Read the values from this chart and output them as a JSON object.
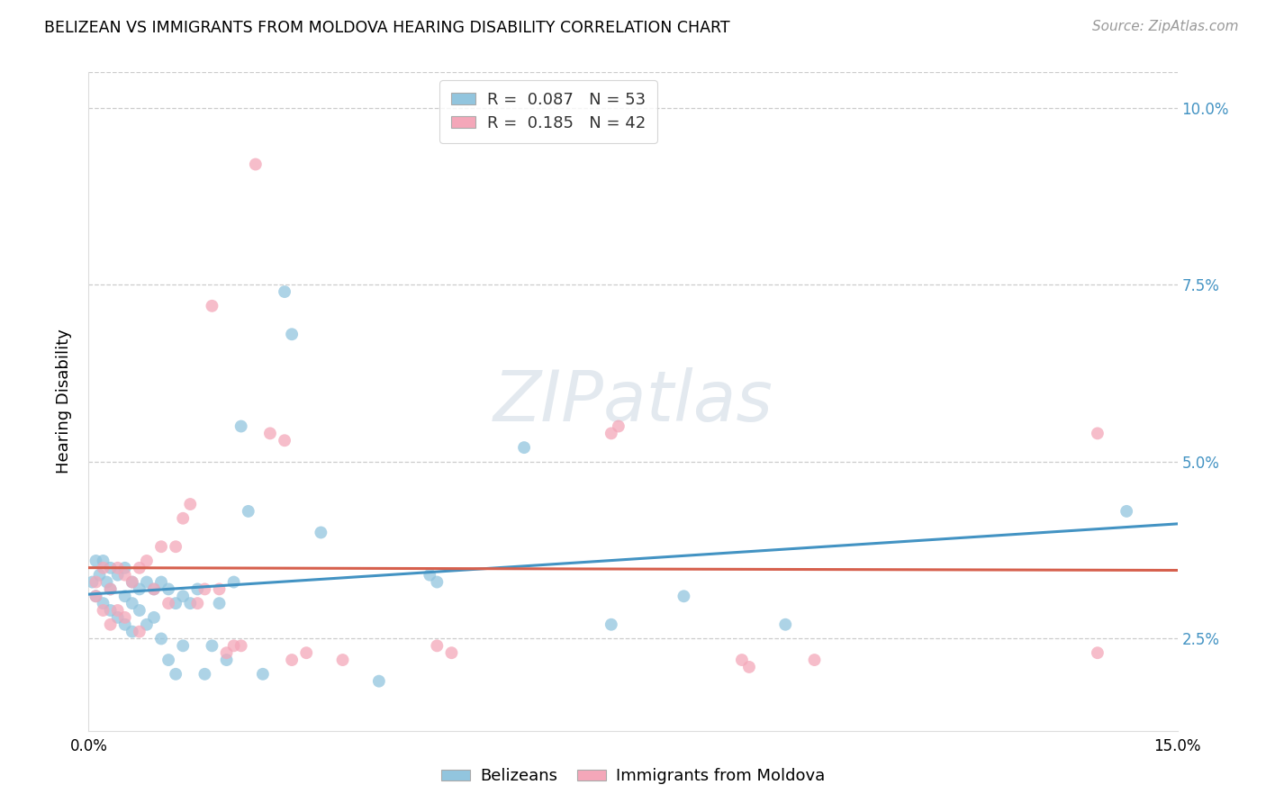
{
  "title": "BELIZEAN VS IMMIGRANTS FROM MOLDOVA HEARING DISABILITY CORRELATION CHART",
  "source": "Source: ZipAtlas.com",
  "ylabel": "Hearing Disability",
  "blue_color": "#92c5de",
  "pink_color": "#f4a7b9",
  "blue_line_color": "#4393c3",
  "pink_line_color": "#d6604d",
  "watermark": "ZIPatlas",
  "blue_R": 0.087,
  "blue_N": 53,
  "pink_R": 0.185,
  "pink_N": 42,
  "blue_x": [
    0.0005,
    0.001,
    0.001,
    0.0015,
    0.002,
    0.002,
    0.0025,
    0.003,
    0.003,
    0.003,
    0.004,
    0.004,
    0.005,
    0.005,
    0.005,
    0.006,
    0.006,
    0.006,
    0.007,
    0.007,
    0.008,
    0.008,
    0.009,
    0.009,
    0.01,
    0.01,
    0.011,
    0.011,
    0.012,
    0.012,
    0.013,
    0.013,
    0.014,
    0.015,
    0.016,
    0.017,
    0.018,
    0.019,
    0.02,
    0.021,
    0.022,
    0.024,
    0.027,
    0.028,
    0.032,
    0.04,
    0.047,
    0.048,
    0.06,
    0.072,
    0.082,
    0.096,
    0.143
  ],
  "blue_y": [
    0.033,
    0.036,
    0.031,
    0.034,
    0.036,
    0.03,
    0.033,
    0.035,
    0.029,
    0.032,
    0.034,
    0.028,
    0.035,
    0.031,
    0.027,
    0.033,
    0.03,
    0.026,
    0.032,
    0.029,
    0.033,
    0.027,
    0.032,
    0.028,
    0.033,
    0.025,
    0.032,
    0.022,
    0.03,
    0.02,
    0.031,
    0.024,
    0.03,
    0.032,
    0.02,
    0.024,
    0.03,
    0.022,
    0.033,
    0.055,
    0.043,
    0.02,
    0.074,
    0.068,
    0.04,
    0.019,
    0.034,
    0.033,
    0.052,
    0.027,
    0.031,
    0.027,
    0.043
  ],
  "pink_x": [
    0.001,
    0.001,
    0.002,
    0.002,
    0.003,
    0.003,
    0.004,
    0.004,
    0.005,
    0.005,
    0.006,
    0.007,
    0.007,
    0.008,
    0.009,
    0.01,
    0.011,
    0.012,
    0.013,
    0.014,
    0.015,
    0.016,
    0.017,
    0.018,
    0.019,
    0.02,
    0.021,
    0.023,
    0.025,
    0.027,
    0.028,
    0.03,
    0.035,
    0.048,
    0.05,
    0.072,
    0.073,
    0.09,
    0.091,
    0.1,
    0.139,
    0.139
  ],
  "pink_y": [
    0.033,
    0.031,
    0.035,
    0.029,
    0.032,
    0.027,
    0.035,
    0.029,
    0.034,
    0.028,
    0.033,
    0.035,
    0.026,
    0.036,
    0.032,
    0.038,
    0.03,
    0.038,
    0.042,
    0.044,
    0.03,
    0.032,
    0.072,
    0.032,
    0.023,
    0.024,
    0.024,
    0.092,
    0.054,
    0.053,
    0.022,
    0.023,
    0.022,
    0.024,
    0.023,
    0.054,
    0.055,
    0.022,
    0.021,
    0.022,
    0.054,
    0.023
  ],
  "xlim": [
    0.0,
    0.15
  ],
  "ylim": [
    0.012,
    0.105
  ],
  "xticks": [
    0.0,
    0.025,
    0.05,
    0.075,
    0.1,
    0.125,
    0.15
  ],
  "yticks": [
    0.025,
    0.05,
    0.075,
    0.1
  ],
  "ytick_labels": [
    "2.5%",
    "5.0%",
    "7.5%",
    "10.0%"
  ],
  "grid_yticks": [
    0.025,
    0.05,
    0.075,
    0.1
  ],
  "marker_size": 100
}
